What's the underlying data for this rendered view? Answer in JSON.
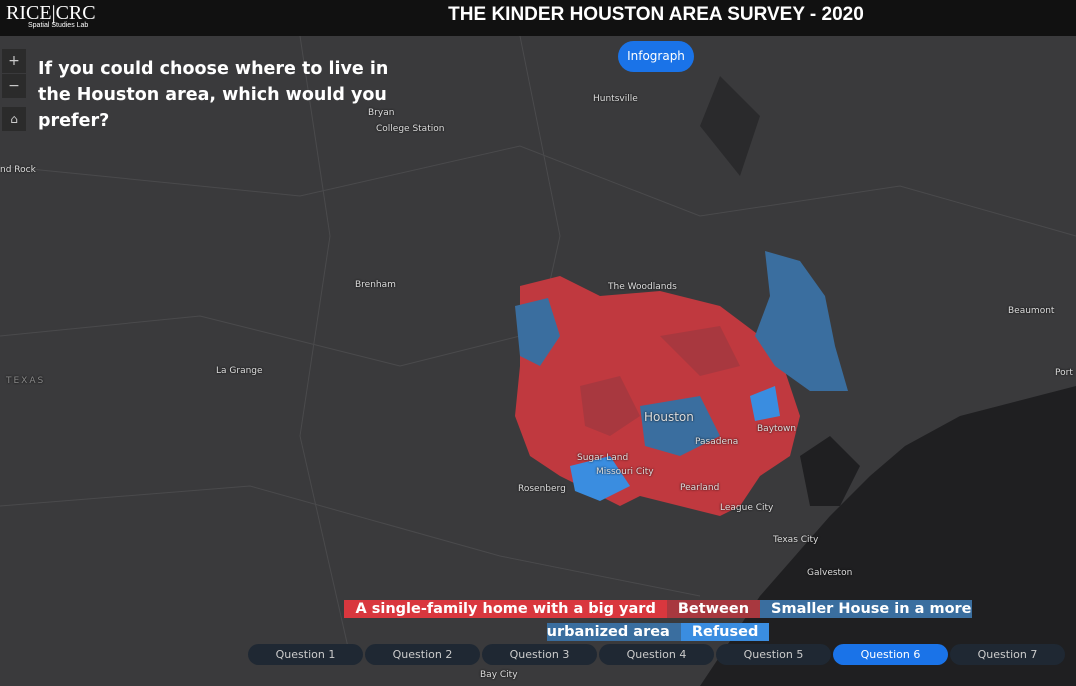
{
  "header": {
    "logo": "RICE",
    "logo_suffix": "CRC",
    "logo_subtitle": "Spatial Studies Lab",
    "title": "THE KINDER HOUSTON AREA SURVEY - 2020"
  },
  "controls": {
    "zoom_in": "+",
    "zoom_out": "−",
    "infograph": "Infograph"
  },
  "question": "If you could choose where to live in the Houston area, which would you prefer?",
  "places": [
    "Huntsville",
    "Bryan",
    "College Station",
    "nd Rock",
    "Brenham",
    "The Woodlands",
    "Beaumont",
    "Port",
    "TEXAS",
    "La Grange",
    "Houston",
    "Baytown",
    "Pasadena",
    "Sugar Land",
    "Missouri City",
    "Rosenberg",
    "Pearland",
    "League City",
    "Texas City",
    "Galveston",
    "Bay City"
  ],
  "legend": [
    "A single-family home with a big yard",
    "Between",
    "Smaller House in a more urbanized area",
    "Refused"
  ],
  "questions": [
    "Question 1",
    "Question 2",
    "Question 3",
    "Question 4",
    "Question 5",
    "Question 6",
    "Question 7"
  ],
  "active_question": 5
}
